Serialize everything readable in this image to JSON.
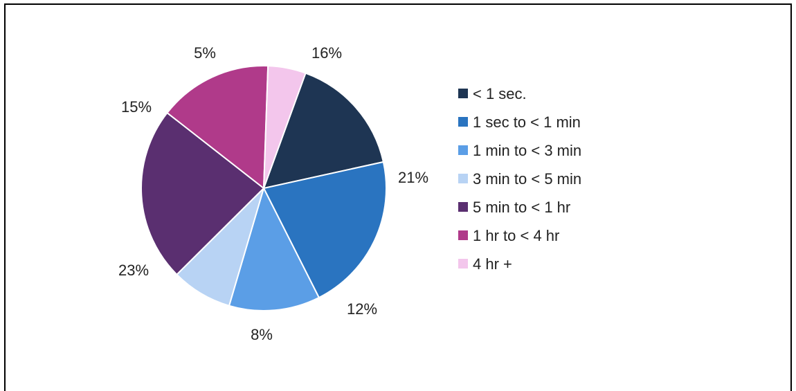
{
  "chart_data": {
    "type": "pie",
    "categories": [
      "< 1 sec.",
      "1 sec to < 1 min",
      "1 min to < 3 min",
      "3 min to < 5 min",
      "5 min to < 1 hr",
      "1 hr to < 4 hr",
      "4 hr +"
    ],
    "values": [
      16,
      21,
      12,
      8,
      23,
      15,
      5
    ],
    "labels": [
      "16%",
      "21%",
      "12%",
      "8%",
      "23%",
      "15%",
      "5%"
    ],
    "colors": [
      "#1e3553",
      "#2a74c0",
      "#5b9ee6",
      "#b8d3f4",
      "#5a2f70",
      "#b03a8a",
      "#f3c6ec"
    ],
    "title": "",
    "legend_position": "right"
  }
}
